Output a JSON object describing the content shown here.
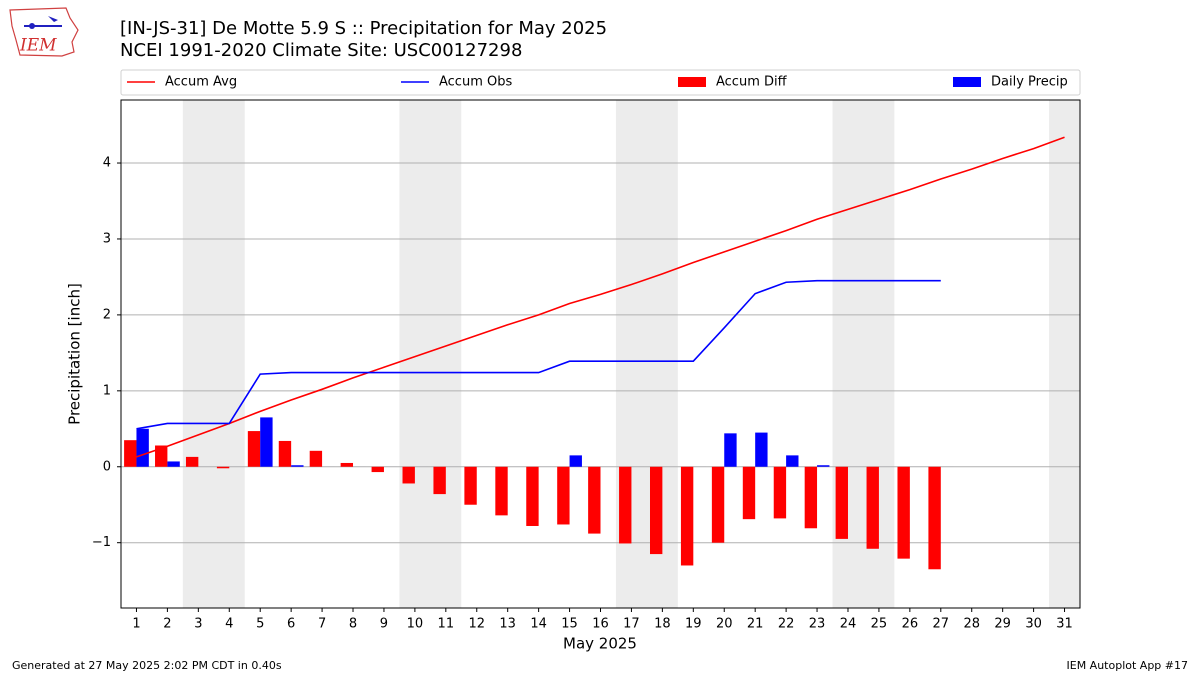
{
  "logo_text": "IEM",
  "footer_left": "Generated at 27 May 2025 2:02 PM CDT in 0.40s",
  "footer_right": "IEM Autoplot App #17",
  "chart_data": {
    "type": "combo",
    "title": "[IN-JS-31] De Motte 5.9 S :: Precipitation for May 2025",
    "subtitle": "NCEI 1991-2020 Climate Site: USC00127298",
    "xlabel": "May 2025",
    "ylabel": "Precipitation [inch]",
    "x": [
      1,
      2,
      3,
      4,
      5,
      6,
      7,
      8,
      9,
      10,
      11,
      12,
      13,
      14,
      15,
      16,
      17,
      18,
      19,
      20,
      21,
      22,
      23,
      24,
      25,
      26,
      27,
      28,
      29,
      30,
      31
    ],
    "xlim": [
      0.5,
      31.5
    ],
    "xticks": [
      1,
      2,
      3,
      4,
      5,
      6,
      7,
      8,
      9,
      10,
      11,
      12,
      13,
      14,
      15,
      16,
      17,
      18,
      19,
      20,
      21,
      22,
      23,
      24,
      25,
      26,
      27,
      28,
      29,
      30,
      31
    ],
    "ylim": [
      -1.86,
      4.83
    ],
    "yticks": [
      {
        "value": -1,
        "label": "−1"
      },
      0,
      1,
      2,
      3,
      4
    ],
    "grid": "y",
    "legend": "top",
    "shaded_ranges": [
      [
        2.5,
        4.5
      ],
      [
        9.5,
        11.5
      ],
      [
        16.5,
        18.5
      ],
      [
        23.5,
        25.5
      ],
      [
        30.5,
        31.5
      ]
    ],
    "shade_color": "#ececec",
    "series": [
      {
        "name": "Accum Avg",
        "type": "line",
        "color": "#ff0000",
        "values": [
          0.13,
          0.27,
          0.42,
          0.57,
          0.73,
          0.88,
          1.02,
          1.17,
          1.31,
          1.45,
          1.59,
          1.73,
          1.87,
          2.0,
          2.15,
          2.27,
          2.4,
          2.54,
          2.69,
          2.83,
          2.97,
          3.11,
          3.26,
          3.39,
          3.52,
          3.65,
          3.79,
          3.92,
          4.06,
          4.19,
          4.34
        ]
      },
      {
        "name": "Accum Obs",
        "type": "line",
        "color": "#0000ff",
        "values": [
          0.5,
          0.57,
          0.57,
          0.57,
          1.22,
          1.24,
          1.24,
          1.24,
          1.24,
          1.24,
          1.24,
          1.24,
          1.24,
          1.24,
          1.39,
          1.39,
          1.39,
          1.39,
          1.39,
          1.83,
          2.28,
          2.43,
          2.45,
          2.45,
          2.45,
          2.45,
          2.45,
          null,
          null,
          null,
          null
        ]
      },
      {
        "name": "Accum Diff",
        "type": "bar",
        "color": "#ff0000",
        "values": [
          0.35,
          0.28,
          0.13,
          -0.02,
          0.47,
          0.34,
          0.21,
          0.05,
          -0.07,
          -0.22,
          -0.36,
          -0.5,
          -0.64,
          -0.78,
          -0.76,
          -0.88,
          -1.01,
          -1.15,
          -1.3,
          -1.0,
          -0.69,
          -0.68,
          -0.81,
          -0.95,
          -1.08,
          -1.21,
          -1.35,
          null,
          null,
          null,
          null
        ]
      },
      {
        "name": "Daily Precip",
        "type": "bar",
        "color": "#0000ff",
        "values": [
          0.5,
          0.07,
          0,
          0,
          0.65,
          0.02,
          0,
          0,
          0,
          0,
          0,
          0,
          0,
          0,
          0.15,
          0,
          0,
          0,
          0,
          0.44,
          0.45,
          0.15,
          0.02,
          0,
          0,
          0,
          0,
          null,
          null,
          null,
          null
        ]
      }
    ]
  }
}
